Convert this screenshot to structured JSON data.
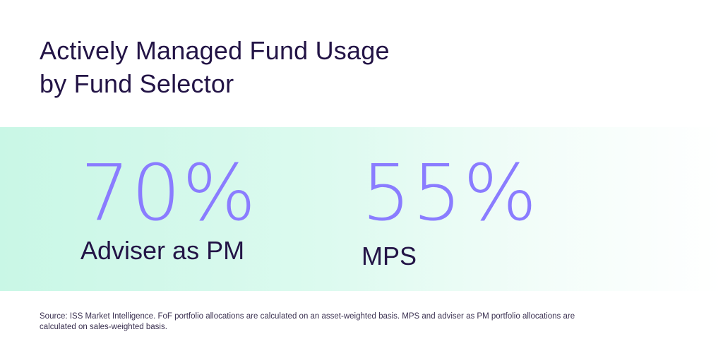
{
  "title_line1": "Actively Managed Fund Usage",
  "title_line2": "by Fund Selector",
  "stats": [
    {
      "value": "70%",
      "label": "Adviser as PM"
    },
    {
      "value": "55%",
      "label": "MPS"
    }
  ],
  "source": "Source: ISS Market Intelligence. FoF portfolio allocations are calculated on an asset-weighted basis. MPS and adviser as PM portfolio allocations are calculated on sales-weighted basis.",
  "colors": {
    "accent": "#8a7cff",
    "text": "#231446",
    "band": "#c9f7e6"
  }
}
